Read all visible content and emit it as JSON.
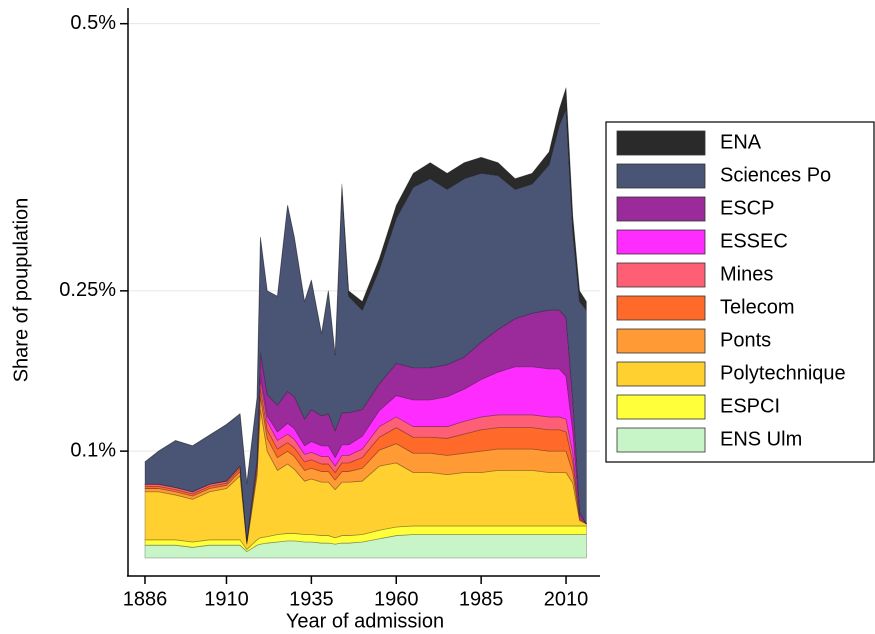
{
  "chart_data": {
    "type": "stacked-area",
    "x_label": "Year of admission",
    "y_label": "Share of poupulation",
    "x": [
      1886,
      1890,
      1895,
      1900,
      1905,
      1910,
      1914,
      1916,
      1919,
      1920,
      1922,
      1925,
      1928,
      1930,
      1933,
      1935,
      1938,
      1940,
      1942,
      1944,
      1946,
      1950,
      1955,
      1960,
      1965,
      1970,
      1975,
      1980,
      1985,
      1990,
      1995,
      2000,
      2005,
      2008,
      2010,
      2012,
      2014,
      2016
    ],
    "xlim": [
      1881,
      2020
    ],
    "xticks": [
      1886,
      1910,
      1935,
      1960,
      1985,
      2010
    ],
    "ylim": [
      0,
      0.51
    ],
    "yticks": [
      {
        "value": 0.1,
        "label": "0.1%"
      },
      {
        "value": 0.25,
        "label": "0.25%"
      },
      {
        "value": 0.5,
        "label": "0.5%"
      }
    ],
    "grid": true,
    "legend": "right",
    "series": [
      {
        "name": "ENS Ulm",
        "color": "#c8f5c8",
        "values": [
          0.012,
          0.012,
          0.012,
          0.01,
          0.012,
          0.012,
          0.012,
          0.006,
          0.012,
          0.013,
          0.014,
          0.015,
          0.016,
          0.016,
          0.015,
          0.015,
          0.014,
          0.014,
          0.013,
          0.014,
          0.014,
          0.015,
          0.018,
          0.021,
          0.022,
          0.022,
          0.022,
          0.022,
          0.022,
          0.022,
          0.022,
          0.022,
          0.022,
          0.022,
          0.022,
          0.022,
          0.022,
          0.022
        ]
      },
      {
        "name": "ESPCI",
        "color": "#ffff3a",
        "values": [
          0.005,
          0.005,
          0.005,
          0.005,
          0.005,
          0.005,
          0.005,
          0.002,
          0.005,
          0.006,
          0.006,
          0.007,
          0.007,
          0.007,
          0.007,
          0.007,
          0.007,
          0.007,
          0.006,
          0.007,
          0.007,
          0.007,
          0.008,
          0.008,
          0.008,
          0.008,
          0.008,
          0.008,
          0.008,
          0.008,
          0.008,
          0.008,
          0.008,
          0.008,
          0.008,
          0.008,
          0.008,
          0.008
        ]
      },
      {
        "name": "Polytechnique",
        "color": "#ffd030",
        "values": [
          0.045,
          0.045,
          0.042,
          0.04,
          0.045,
          0.048,
          0.06,
          0.005,
          0.06,
          0.12,
          0.08,
          0.06,
          0.065,
          0.06,
          0.05,
          0.052,
          0.05,
          0.05,
          0.045,
          0.05,
          0.05,
          0.05,
          0.06,
          0.06,
          0.05,
          0.05,
          0.048,
          0.05,
          0.05,
          0.052,
          0.052,
          0.052,
          0.05,
          0.05,
          0.05,
          0.04,
          0.005,
          0.002
        ]
      },
      {
        "name": "Ponts",
        "color": "#ff9a35",
        "values": [
          0.003,
          0.003,
          0.003,
          0.003,
          0.003,
          0.003,
          0.004,
          0.001,
          0.005,
          0.012,
          0.012,
          0.012,
          0.012,
          0.012,
          0.01,
          0.01,
          0.01,
          0.01,
          0.009,
          0.01,
          0.01,
          0.012,
          0.015,
          0.018,
          0.018,
          0.018,
          0.018,
          0.018,
          0.02,
          0.02,
          0.02,
          0.02,
          0.02,
          0.02,
          0.02,
          0.01,
          0.001,
          0
        ]
      },
      {
        "name": "Telecom",
        "color": "#ff6a2a",
        "values": [
          0.002,
          0.002,
          0.002,
          0.002,
          0.002,
          0.002,
          0.003,
          0.001,
          0.003,
          0.008,
          0.008,
          0.008,
          0.008,
          0.008,
          0.008,
          0.008,
          0.007,
          0.007,
          0.007,
          0.008,
          0.008,
          0.01,
          0.012,
          0.015,
          0.015,
          0.015,
          0.016,
          0.018,
          0.02,
          0.02,
          0.02,
          0.02,
          0.02,
          0.02,
          0.018,
          0.01,
          0.001,
          0
        ]
      },
      {
        "name": "Mines",
        "color": "#ff5f75",
        "values": [
          0.002,
          0.002,
          0.002,
          0.002,
          0.002,
          0.002,
          0.002,
          0.001,
          0.003,
          0.008,
          0.008,
          0.008,
          0.008,
          0.008,
          0.007,
          0.007,
          0.007,
          0.007,
          0.006,
          0.007,
          0.007,
          0.008,
          0.01,
          0.01,
          0.01,
          0.01,
          0.011,
          0.012,
          0.012,
          0.012,
          0.012,
          0.012,
          0.012,
          0.012,
          0.012,
          0.008,
          0.001,
          0
        ]
      },
      {
        "name": "ESSEC",
        "color": "#ff2cff",
        "values": [
          0,
          0,
          0,
          0,
          0,
          0,
          0,
          0,
          0.002,
          0.005,
          0.005,
          0.008,
          0.01,
          0.01,
          0.008,
          0.01,
          0.01,
          0.01,
          0.008,
          0.01,
          0.01,
          0.012,
          0.015,
          0.02,
          0.025,
          0.025,
          0.028,
          0.03,
          0.035,
          0.04,
          0.045,
          0.045,
          0.045,
          0.045,
          0.04,
          0.02,
          0.002,
          0
        ]
      },
      {
        "name": "ESCP",
        "color": "#9b2b9b",
        "values": [
          0,
          0,
          0,
          0,
          0,
          0,
          0,
          0,
          0.002,
          0.02,
          0.02,
          0.025,
          0.03,
          0.03,
          0.025,
          0.03,
          0.028,
          0.03,
          0.025,
          0.03,
          0.03,
          0.025,
          0.025,
          0.03,
          0.03,
          0.03,
          0.03,
          0.03,
          0.035,
          0.04,
          0.045,
          0.05,
          0.055,
          0.055,
          0.055,
          0.03,
          0.003,
          0
        ]
      },
      {
        "name": "Sciences Po",
        "color": "#4a5474",
        "values": [
          0.021,
          0.031,
          0.044,
          0.043,
          0.046,
          0.053,
          0.049,
          0.054,
          0.058,
          0.108,
          0.097,
          0.102,
          0.174,
          0.149,
          0.11,
          0.121,
          0.077,
          0.115,
          0.071,
          0.209,
          0.109,
          0.093,
          0.107,
          0.136,
          0.169,
          0.177,
          0.164,
          0.167,
          0.158,
          0.144,
          0.121,
          0.121,
          0.136,
          0.173,
          0.195,
          0.157,
          0.197,
          0.2
        ]
      },
      {
        "name": "ENA",
        "color": "#2a2a2a",
        "values": [
          0,
          0,
          0,
          0,
          0,
          0,
          0,
          0,
          0,
          0,
          0,
          0,
          0,
          0,
          0,
          0,
          0,
          0,
          0,
          0.005,
          0.005,
          0.008,
          0.01,
          0.012,
          0.013,
          0.015,
          0.015,
          0.015,
          0.015,
          0.012,
          0.01,
          0.01,
          0.012,
          0.015,
          0.02,
          0.015,
          0.01,
          0.008
        ]
      }
    ]
  }
}
